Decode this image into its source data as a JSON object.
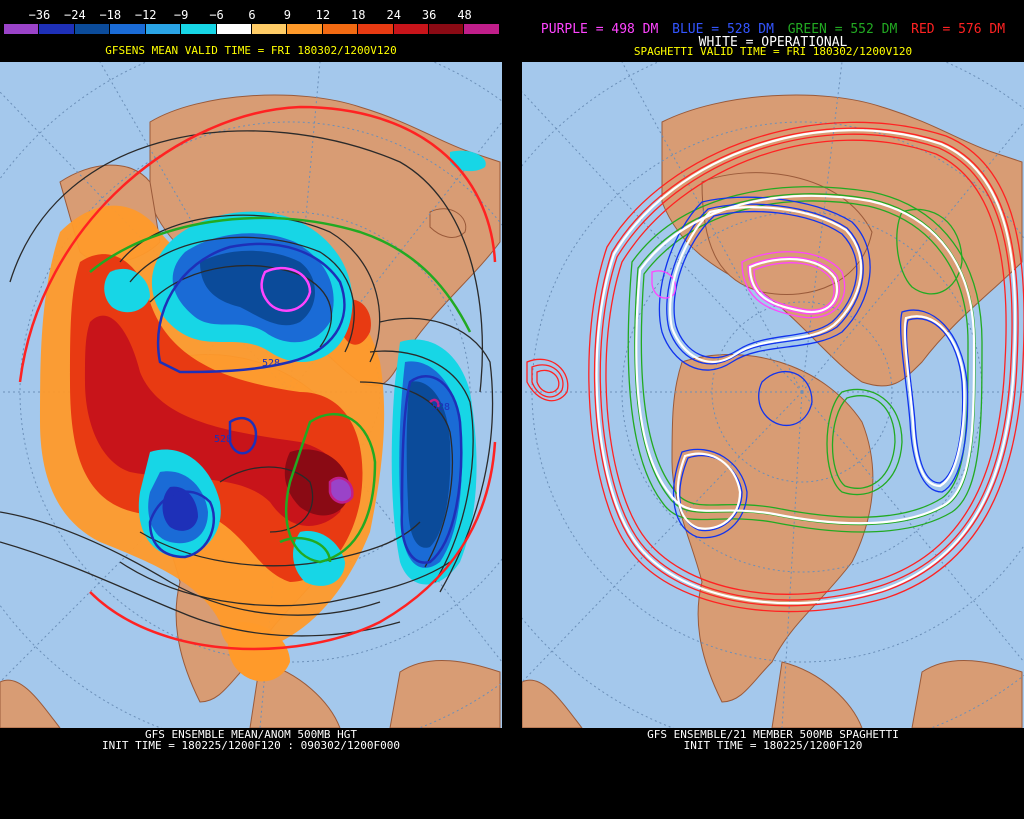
{
  "left": {
    "colorbar_ticks": [
      "−36",
      "−24",
      "−18",
      "−12",
      "−9",
      "−6",
      "6",
      "9",
      "12",
      "18",
      "24",
      "36",
      "48"
    ],
    "colorbar_colors": [
      "#9a43c8",
      "#1e30b8",
      "#0b4b9a",
      "#1a6bd6",
      "#2aa4e6",
      "#17d6e6",
      "#ffffff",
      "#ffcc66",
      "#ff9a2a",
      "#f26a12",
      "#e83a12",
      "#c8141a",
      "#8a0a14",
      "#c01e8a"
    ],
    "subtitle": "GFSENS MEAN VALID TIME = FRI 180302/1200V120",
    "contour_labels": [
      "528",
      "528",
      "528"
    ],
    "footer_line1": "GFS ENSEMBLE MEAN/ANOM 500MB HGT",
    "footer_line2": "INIT TIME = 180225/1200F120 : 090302/1200F000"
  },
  "right": {
    "legend": [
      {
        "text": "PURPLE = 498 DM",
        "color": "#ff44ff"
      },
      {
        "text": "BLUE = 528 DM",
        "color": "#3355ff"
      },
      {
        "text": "GREEN = 552 DM",
        "color": "#22aa22"
      },
      {
        "text": "RED = 576 DM",
        "color": "#ff2222"
      }
    ],
    "legend_line2": "WHITE = OPERATIONAL",
    "subtitle": "SPAGHETTI VALID TIME = FRI 180302/1200V120",
    "footer_line1": "GFS ENSEMBLE/21 MEMBER 500MB SPAGHETTI",
    "footer_line2": "INIT TIME = 180225/1200F120"
  }
}
